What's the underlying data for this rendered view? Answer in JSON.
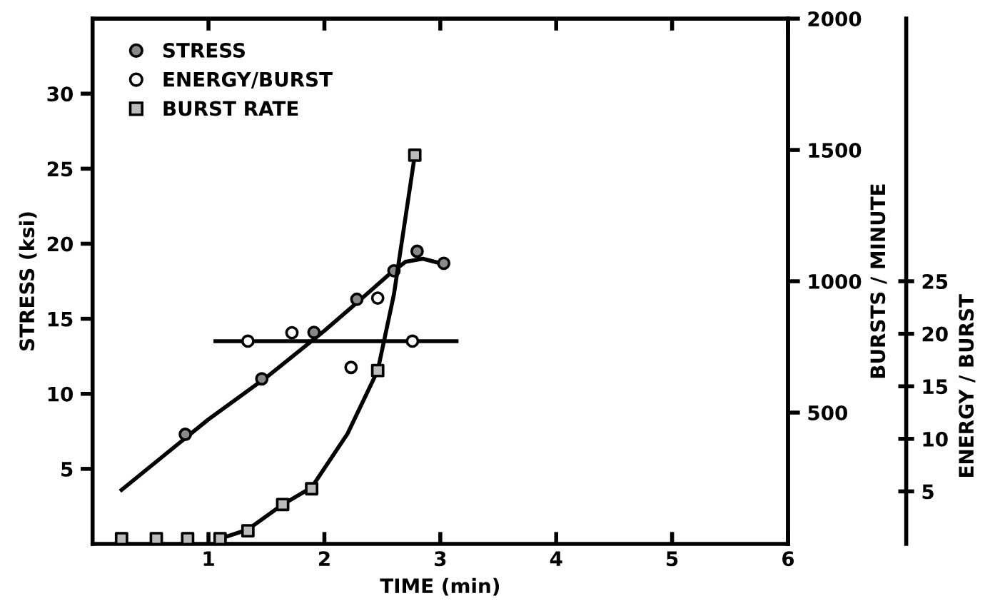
{
  "chart_data": {
    "type": "scatter",
    "xlabel": "TIME (min)",
    "ylabel": "STRESS (ksi)",
    "y2label": "BURSTS / MINUTE",
    "y3label": "ENERGY / BURST",
    "xlim": [
      0,
      6
    ],
    "xticks": [
      1,
      2,
      3,
      4,
      5,
      6
    ],
    "ylim": [
      0,
      35
    ],
    "yticks": [
      5,
      10,
      15,
      20,
      25,
      30
    ],
    "y2lim": [
      0,
      2000
    ],
    "y2ticks": [
      500,
      1000,
      1500,
      2000
    ],
    "y3lim": [
      0,
      50
    ],
    "y3ticks": [
      5,
      10,
      15,
      20,
      25
    ],
    "grid": false,
    "legend": "top left",
    "series": [
      {
        "name": "STRESS",
        "marker": "circle",
        "color": "#000000",
        "x": [
          0.8,
          1.46,
          1.91,
          2.28,
          2.6,
          2.8,
          3.03
        ],
        "values": [
          7.3,
          11.0,
          14.1,
          16.3,
          18.2,
          19.5,
          18.7
        ]
      },
      {
        "name": "ENERGY/BURST",
        "marker": "circle",
        "axis": "y3",
        "color": "#000000",
        "x": [
          1.34,
          1.72,
          2.23,
          2.46,
          2.76
        ],
        "values": [
          19.3,
          20.1,
          16.8,
          23.4,
          19.3
        ]
      },
      {
        "name": "BURST RATE",
        "marker": "square",
        "axis": "y2",
        "color": "#000000",
        "x": [
          0.25,
          0.55,
          0.82,
          1.1,
          1.34,
          1.64,
          1.89,
          2.46,
          2.78
        ],
        "values": [
          20,
          20,
          20,
          20,
          50,
          150,
          210,
          660,
          1480
        ]
      },
      {
        "type": "line",
        "color": "#000000",
        "x": [
          0.25,
          1.0,
          1.5,
          2.0,
          2.3,
          2.55,
          2.7,
          2.85,
          3.0
        ],
        "values": [
          3.6,
          8.3,
          11.1,
          14.2,
          16.2,
          17.9,
          18.8,
          19.0,
          18.7
        ]
      },
      {
        "type": "line",
        "axis": "y3",
        "color": "#000000",
        "x": [
          1.06,
          3.14
        ],
        "values": [
          19.3,
          19.3
        ]
      },
      {
        "type": "line",
        "axis": "y2",
        "color": "#000000",
        "x": [
          1.1,
          1.34,
          1.64,
          1.89,
          2.2,
          2.46,
          2.6,
          2.78
        ],
        "values": [
          20,
          55,
          150,
          215,
          420,
          660,
          950,
          1480
        ]
      }
    ]
  }
}
